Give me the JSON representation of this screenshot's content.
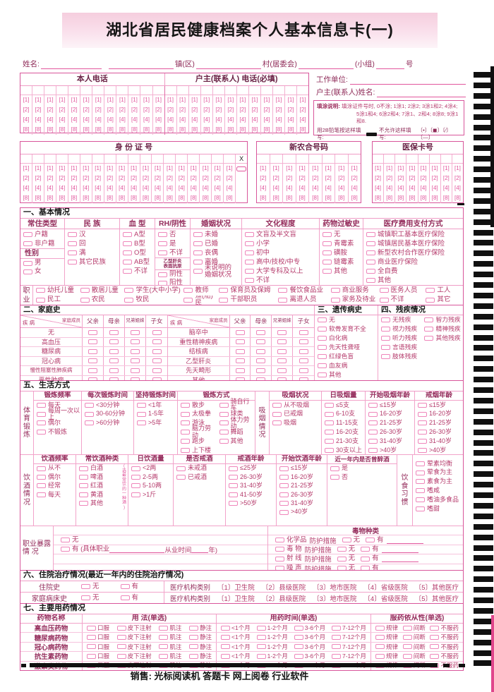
{
  "title": "湖北省居民健康档案个人基本信息卡(一)",
  "name_line": {
    "name": "姓名:",
    "town": "镇(区)",
    "village": "村(居委会)",
    "group": "(小组)",
    "number": "号"
  },
  "contact": {
    "self_phone": "本人电话",
    "head_phone": "户主(联系人) 电话(必填)",
    "work_unit": "工作单位:",
    "head_name": "户主(联系人)姓名:"
  },
  "digits": [
    "1",
    "2",
    "4",
    "8"
  ],
  "grids": {
    "id_card": {
      "title": "身 份 证 号",
      "columns": 18,
      "check_label": "X"
    },
    "rural": {
      "title": "新农合号码",
      "columns": 8
    },
    "medicare": {
      "title": "医保卡号",
      "columns": 8
    },
    "phone_columns": 24
  },
  "instructions": {
    "label": "填涂说明:",
    "line1": "填涂证件号时, 0不涂; 1涂1; 2涂2; 3涂1和2; 4涂4;",
    "line2": "5涂1和4; 6涂2和4; 7涂1、2和4; 8涂8; 9涂1和8.",
    "pencil": "用2B铅笔按这样填写:",
    "not_allowed": "不允许这样填写:",
    "bad_marks": "〔•〕〔◼〕〔⁄〕〔—〕"
  },
  "section1": {
    "title": "一、基本情况",
    "columns": [
      {
        "header": "常住类型",
        "options": [
          "户籍",
          "非户籍"
        ],
        "sub": {
          "header": "性别",
          "options": [
            "男",
            "女"
          ]
        }
      },
      {
        "header": "民 族",
        "options": [
          "汉",
          "回",
          "满",
          "其它民族"
        ]
      },
      {
        "header": "血 型",
        "options": [
          "A型",
          "B型",
          "O型",
          "AB型",
          "不详"
        ]
      },
      {
        "header": "RH/阴性",
        "options": [
          "否",
          "是",
          "不详"
        ],
        "sub": {
          "lines": [
            "乙型肝炎",
            "表面抗原"
          ],
          "options": [
            "阴性",
            "阳性"
          ]
        }
      },
      {
        "header": "婚姻状况",
        "options": [
          "未婚",
          "已婚",
          "丧偶",
          "离婚",
          "未说明的\n婚姻状况"
        ]
      },
      {
        "header": "文化程度",
        "options": [
          "文盲及半文盲",
          "小学",
          "初中",
          "高中/技校/中专",
          "大学专科及以上",
          "不详"
        ]
      },
      {
        "header": "药物过敏史",
        "options": [
          "无",
          "青霉素",
          "磺胺",
          "链霉素",
          "其他"
        ]
      },
      {
        "header": "医疗费用支付方式",
        "options": [
          "城镇职工基本医疗保险",
          "城镇居民基本医疗保险",
          "新型农村合作医疗保险",
          "商业医疗保险",
          "全自费",
          "其他"
        ]
      }
    ],
    "occupation": {
      "label": "职业",
      "rows": [
        [
          "幼托儿童",
          "散居儿童",
          "学生(大中小学)",
          "教师",
          "保育员及保姆",
          "餐饮食品业",
          "商业服务",
          "医务人员",
          "工人"
        ],
        [
          "民工",
          "农民",
          "牧民",
          "渔(船)民",
          "干部职员",
          "离退人员",
          "家务及待业",
          "不详",
          "其它"
        ]
      ]
    }
  },
  "section2": {
    "title": "二、家庭史",
    "corner_member": "家庭成员",
    "corner_disease": "疾 病",
    "members": [
      "父亲",
      "母亲",
      "兄弟姐妹",
      "子女"
    ],
    "tables": [
      [
        "无",
        "高血压",
        "糖尿病",
        "冠心病",
        "慢性阻塞性肺疾病",
        "恶性肿瘤"
      ],
      [
        "脑卒中",
        "重性精神疾病",
        "结核病",
        "乙型肝炎",
        "先天畸形",
        "其他"
      ]
    ]
  },
  "section3": {
    "title": "三、遗传病史",
    "options": [
      "无",
      "软骨发育不全",
      "白化病",
      "先天性聋哑",
      "红绿色盲",
      "血友病",
      "其他"
    ]
  },
  "section4": {
    "title": "四、残疾情况",
    "col1": [
      "无残疾",
      "视力残疾",
      "听力残疾",
      "言语残疾",
      "肢体残疾"
    ],
    "col2": [
      "智力残疾",
      "精神残疾",
      "其他残疾"
    ]
  },
  "section5": {
    "title": "五、生活方式",
    "exercise_side": "体育锻炼",
    "exercise_cols": [
      {
        "header": "锻炼频率",
        "options": [
          "每天",
          "每周一次以上",
          "偶尔",
          "不锻炼"
        ]
      },
      {
        "header": "每次锻炼时间",
        "options": [
          "<30分钟",
          "30-60分钟",
          ">60分钟"
        ]
      },
      {
        "header": "坚持锻炼时间",
        "options": [
          "<1年",
          "1-5年",
          ">5年"
        ]
      },
      {
        "header": "锻炼方式",
        "pairs": [
          "散步",
          "骑自行车",
          "太极拳",
          "球类",
          "游泳",
          "体力劳动",
          "脑力劳动",
          "舞蹈",
          "跑步",
          "其他",
          "上下楼"
        ]
      }
    ],
    "smoking_side": "吸烟情况",
    "smoking_cols": [
      {
        "header": "吸烟状况",
        "options": [
          "从不吸烟",
          "已戒烟",
          "吸烟"
        ]
      },
      {
        "header": "日吸烟量",
        "options": [
          "≤5支",
          "6-10支",
          "11-15支",
          "16-20支",
          "21-30支",
          "30支以上"
        ]
      },
      {
        "header": "开始吸烟年龄",
        "options": [
          "≤15岁",
          "16-20岁",
          "21-25岁",
          "26-30岁",
          "31-40岁",
          ">40岁"
        ]
      },
      {
        "header": "戒烟年龄",
        "options": [
          "≤15岁",
          "16-20岁",
          "21-25岁",
          "26-30岁",
          "31-40岁",
          ">40岁"
        ]
      }
    ],
    "drinking_side": "饮酒情况",
    "drinking_cols": [
      {
        "header": "饮酒频率",
        "options": [
          "从不",
          "偶尔",
          "经常",
          "每天"
        ]
      },
      {
        "header": "常饮酒种类",
        "options": [
          "白酒",
          "啤酒",
          "红酒",
          "黄酒",
          "其他"
        ],
        "note": "(选最常饮的一种酒)"
      },
      {
        "header": "日饮酒量",
        "options": [
          "<2两",
          "2-5两",
          "5-10两",
          ">1斤"
        ]
      },
      {
        "header": "是否戒酒",
        "options": [
          "未戒酒",
          "已戒酒"
        ]
      },
      {
        "header": "戒酒年龄",
        "options": [
          "≤25岁",
          "26-30岁",
          "31-40岁",
          "41-50岁",
          ">50岁"
        ]
      },
      {
        "header": "开始饮酒年龄",
        "options": [
          "≤15岁",
          "16-20岁",
          "21-25岁",
          "26-30岁",
          "31-40岁",
          ">40岁"
        ]
      },
      {
        "header": "近一年内是否曾醉酒",
        "options": [
          "是",
          "否"
        ]
      }
    ],
    "diet_side": "饮食习惯",
    "diet_options": [
      "荤素均衡",
      "荤食为主",
      "素食为主",
      "嗜咸",
      "嗜油多食品",
      "嗜甜"
    ],
    "exposure": {
      "label": "职业暴露\n情  况",
      "none": "无",
      "have": "有 (具体职业",
      "work_time": "从业时间",
      "year": "年)",
      "toxin_header": "毒物种类",
      "toxins": [
        "化学品",
        "毒 物",
        "射 线",
        "噪 声"
      ],
      "protection": "防护措施",
      "p_no": "无",
      "p_yes": "有"
    }
  },
  "section6": {
    "title": "六、住院治疗情况(最近一年内的住院治疗情况)",
    "rows": [
      "住院史",
      "家庭病床史"
    ],
    "no": "无",
    "yes": "有",
    "org_label": "医疗机构类别",
    "orgs": [
      "〔1〕卫生院",
      "〔2〕县级医院",
      "〔3〕地市医院",
      "〔4〕省级医院",
      "〔5〕其他医疗"
    ]
  },
  "section7": {
    "title": "七、主要用药情况",
    "headers": [
      "药物名称",
      "用 法(单选)",
      "用药时间(单选)",
      "服药依从性(单选)"
    ],
    "drugs": [
      "高血压药物",
      "糖尿病药物",
      "冠心病药物",
      "抗生素药物",
      "激素类药物"
    ],
    "usage": [
      "口服",
      "皮下注射",
      "肌注",
      "静注"
    ],
    "time": [
      "<1个月",
      "1-2个月",
      "3-6个月",
      "7-12个月"
    ],
    "adherence": [
      "规律",
      "间断",
      "不服药"
    ]
  },
  "footer": "销售: 光标阅读机 答题卡 网上阅卷 行业软件"
}
